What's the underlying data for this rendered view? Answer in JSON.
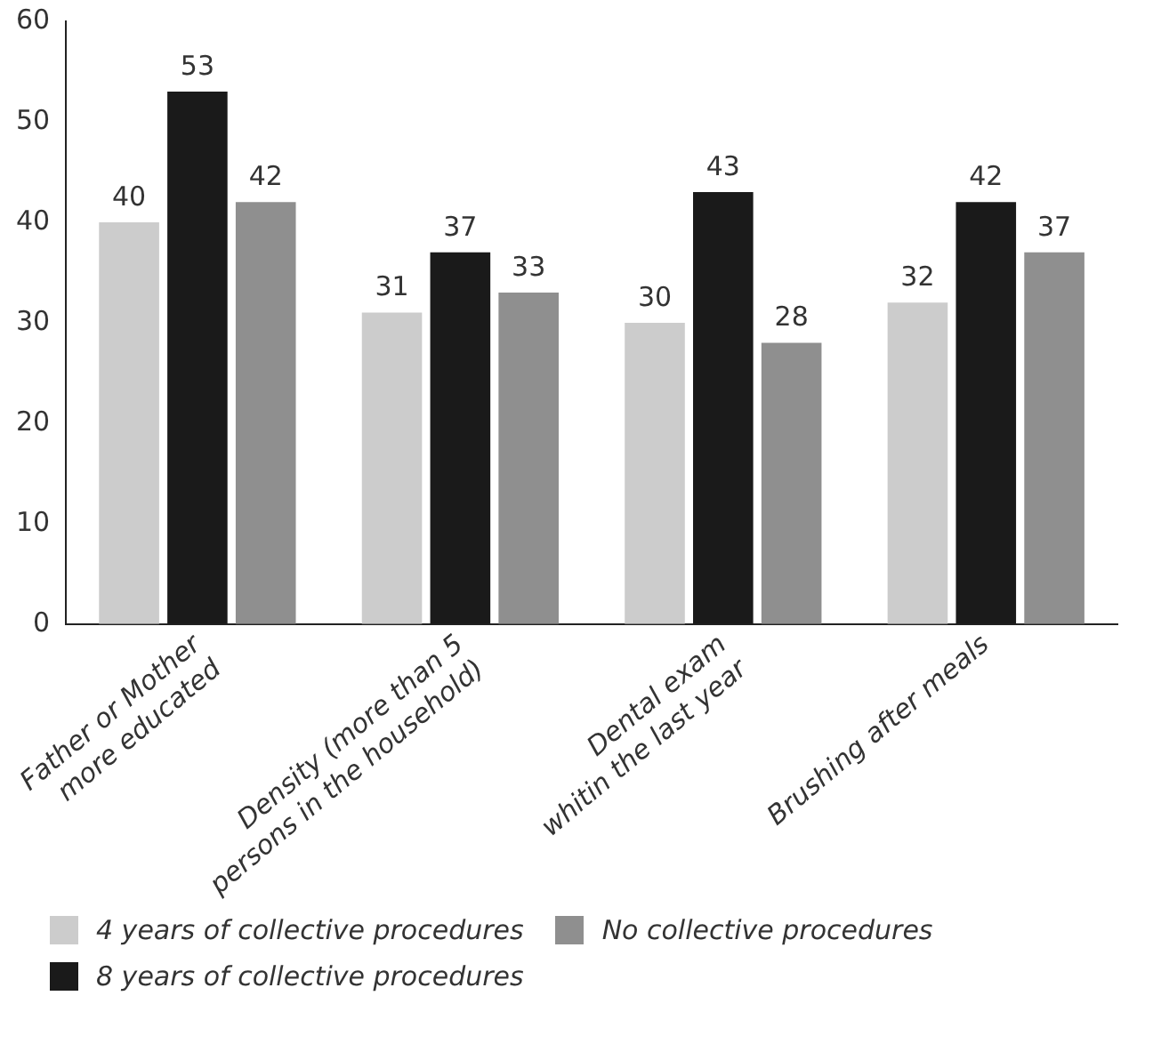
{
  "chart_data": {
    "type": "bar",
    "categories": [
      "Father or Mother\nmore educated",
      "Density (more than 5\npersons in the household)",
      "Dental exam\nwhitin the last year",
      "Brushing after meals"
    ],
    "series": [
      {
        "name": "4 years of collective procedures",
        "color": "#cccccc",
        "values": [
          40,
          31,
          30,
          32
        ]
      },
      {
        "name": "8 years of collective procedures",
        "color": "#1a1a1a",
        "values": [
          53,
          37,
          43,
          42
        ]
      },
      {
        "name": "No collective procedures",
        "color": "#8f8f8f",
        "values": [
          42,
          33,
          28,
          37
        ]
      }
    ],
    "ylim": [
      0,
      60
    ],
    "yticks": [
      0,
      10,
      20,
      30,
      40,
      50,
      60
    ],
    "grid": false,
    "legend": "bottom",
    "data_labels": true
  }
}
